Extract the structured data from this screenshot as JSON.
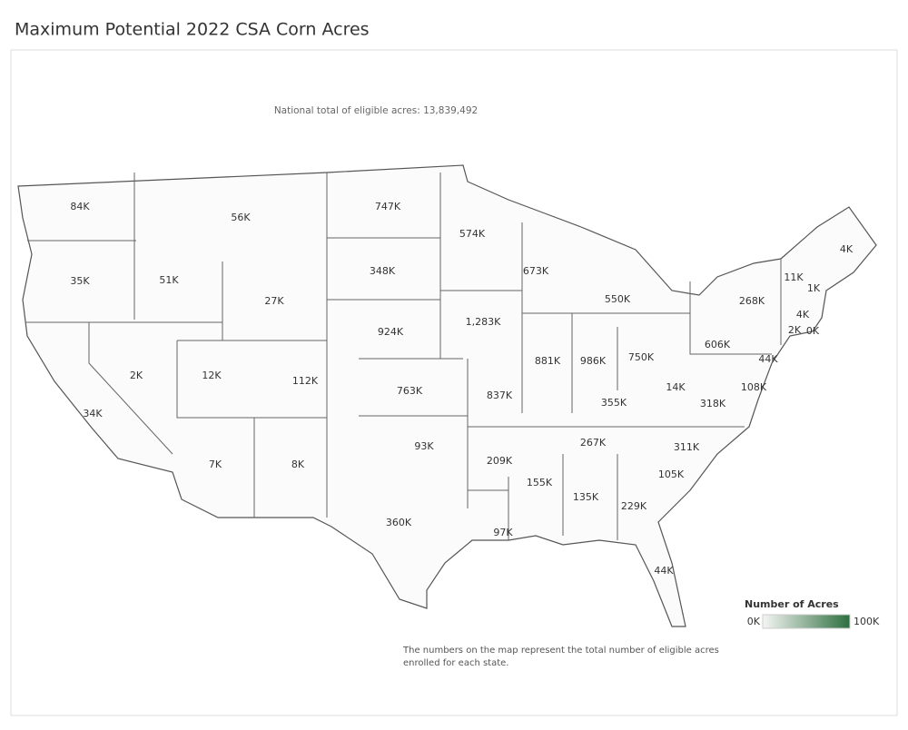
{
  "title": "Maximum Potential 2022 CSA Corn Acres",
  "subtitle": "National total of eligible acres: 13,839,492",
  "state_labels": [
    "84K",
    "56K",
    "747K",
    "574K",
    "4K",
    "35K",
    "51K",
    "348K",
    "673K",
    "11K",
    "1K",
    "27K",
    "550K",
    "268K",
    "4K",
    "1,283K",
    "2K",
    "0K",
    "924K",
    "606K",
    "881K",
    "986K",
    "750K",
    "44K",
    "2K",
    "12K",
    "112K",
    "14K",
    "108K",
    "763K",
    "837K",
    "355K",
    "318K",
    "34K",
    "267K",
    "311K",
    "93K",
    "209K",
    "7K",
    "8K",
    "105K",
    "155K",
    "135K",
    "229K",
    "360K",
    "97K",
    "44K"
  ],
  "legend": {
    "title": "Number of Acres",
    "min_label": "0K",
    "max_label": "100K"
  },
  "footnote": [
    "The numbers on the map represent the total number of eligible acres",
    "enrolled for each state."
  ]
}
